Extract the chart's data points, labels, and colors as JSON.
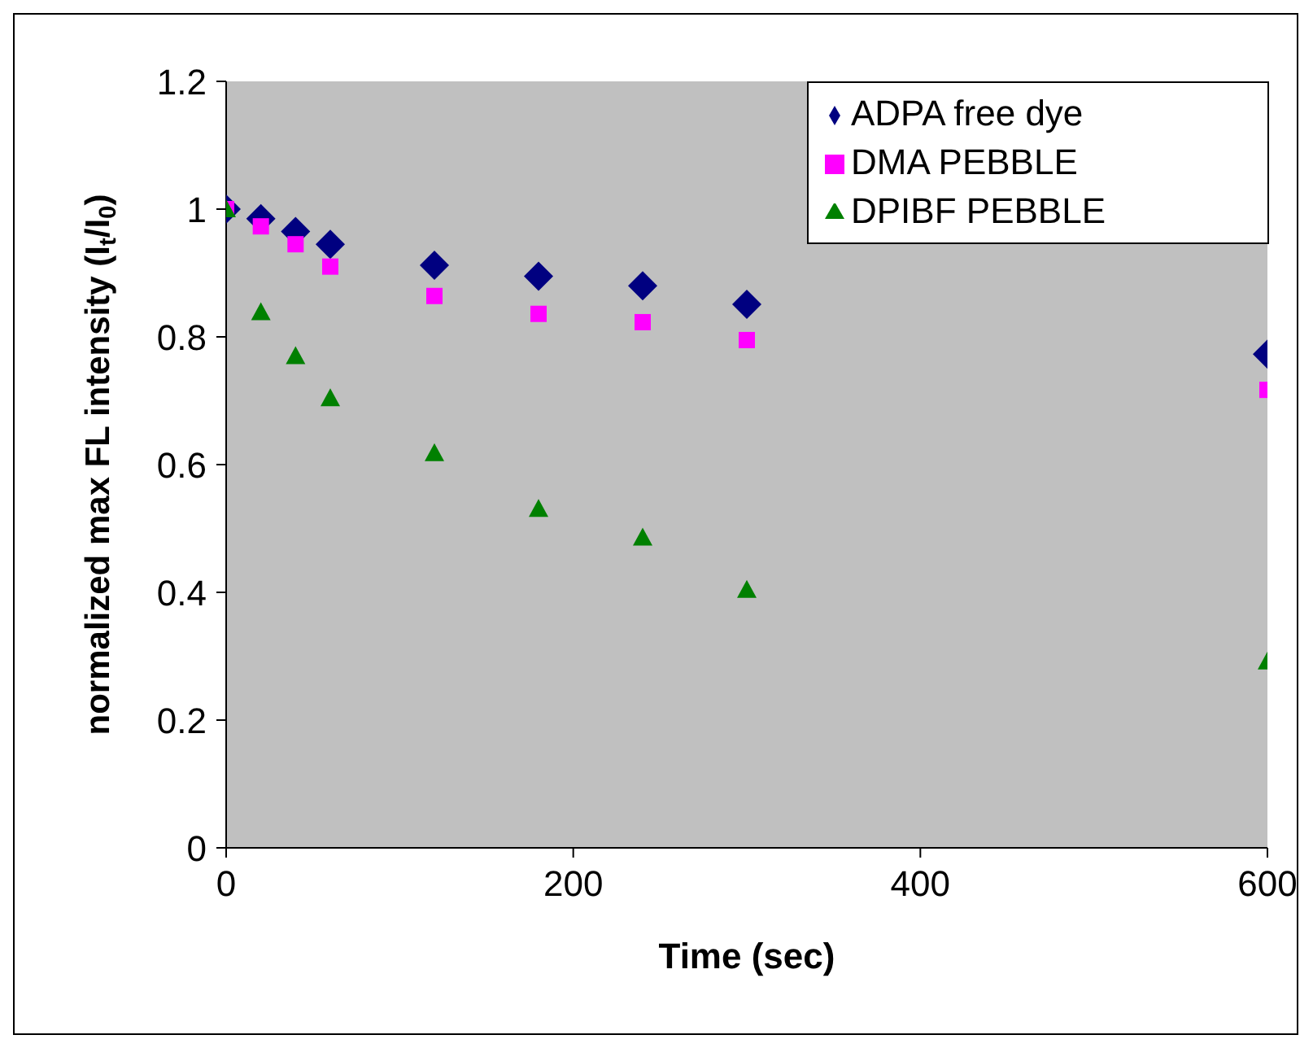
{
  "chart_data": {
    "type": "scatter",
    "xlabel": "Time (sec)",
    "ylabel": "normalized max FL intensity (I$_{t}$/I$_{0}$)",
    "x": [
      0,
      20,
      40,
      60,
      120,
      180,
      240,
      300,
      600
    ],
    "series": [
      {
        "name": "ADPA free dye",
        "color": "#000080",
        "marker": "diamond",
        "values": [
          1.0,
          0.985,
          0.965,
          0.945,
          0.912,
          0.895,
          0.88,
          0.851,
          0.773
        ]
      },
      {
        "name": "DMA PEBBLE",
        "color": "#ff00ff",
        "marker": "square",
        "values": [
          1.0,
          0.973,
          0.945,
          0.91,
          0.864,
          0.836,
          0.823,
          0.795,
          0.717
        ]
      },
      {
        "name": "DPIBF PEBBLE",
        "color": "#008000",
        "marker": "triangle",
        "values": [
          1.0,
          0.839,
          0.77,
          0.704,
          0.618,
          0.531,
          0.486,
          0.404,
          0.292
        ]
      }
    ],
    "xlim": [
      0,
      600
    ],
    "xticks": [
      0,
      200,
      400,
      600
    ],
    "ylim": [
      0,
      1.2
    ],
    "yticks": [
      0,
      0.2,
      0.4,
      0.6,
      0.8,
      1,
      1.2
    ],
    "legend": "top right"
  }
}
